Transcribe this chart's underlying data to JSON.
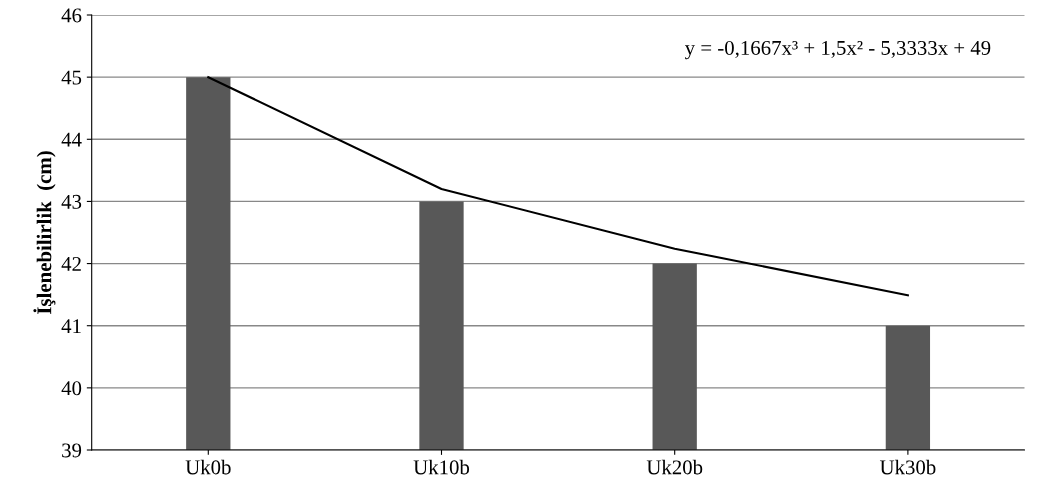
{
  "chart_data": {
    "type": "bar",
    "ylabel": "İşlenebilirlik  (cm)",
    "categories": [
      "Uk0b",
      "Uk10b",
      "Uk20b",
      "Uk30b"
    ],
    "series": [
      {
        "color": "#585858",
        "values": [
          45,
          43,
          42,
          41
        ]
      },
      {
        "type": "line",
        "color": "#000000",
        "values": [
          45.0,
          43.2,
          42.24,
          41.49
        ]
      }
    ],
    "ylim": [
      39,
      46
    ],
    "yticks": [
      39,
      40,
      41,
      42,
      43,
      44,
      45,
      46
    ],
    "grid": "y",
    "legend": false,
    "annotations": [
      "y = -0,1667x³ + 1,5x² - 5,3333x + 49"
    ]
  }
}
